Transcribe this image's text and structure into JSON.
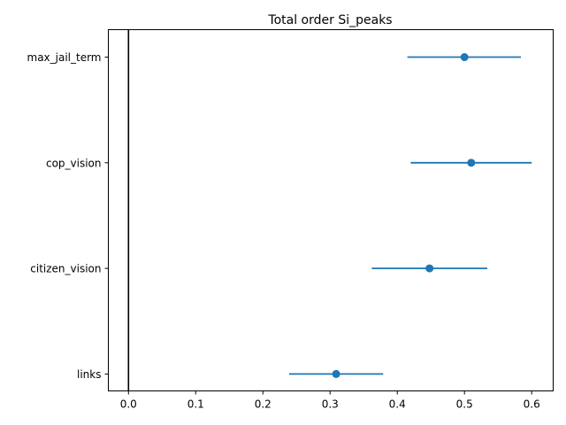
{
  "chart_data": {
    "type": "scatter",
    "title": "Total order Si_peaks",
    "xlabel": "",
    "ylabel": "",
    "xlim": [
      -0.03,
      0.632
    ],
    "xticks": [
      0.0,
      0.1,
      0.2,
      0.3,
      0.4,
      0.5,
      0.6
    ],
    "xtick_labels": [
      "0.0",
      "0.1",
      "0.2",
      "0.3",
      "0.4",
      "0.5",
      "0.6"
    ],
    "categories": [
      "max_jail_term",
      "cop_vision",
      "citizen_vision",
      "links"
    ],
    "values": [
      0.5,
      0.51,
      0.448,
      0.309
    ],
    "error_low": [
      0.415,
      0.42,
      0.362,
      0.239
    ],
    "error_high": [
      0.584,
      0.6,
      0.534,
      0.379
    ],
    "reference_line_x": 0.0,
    "grid": false,
    "legend": "none",
    "marker_color": "#1f77b4",
    "reference_line_color": "#000000"
  }
}
